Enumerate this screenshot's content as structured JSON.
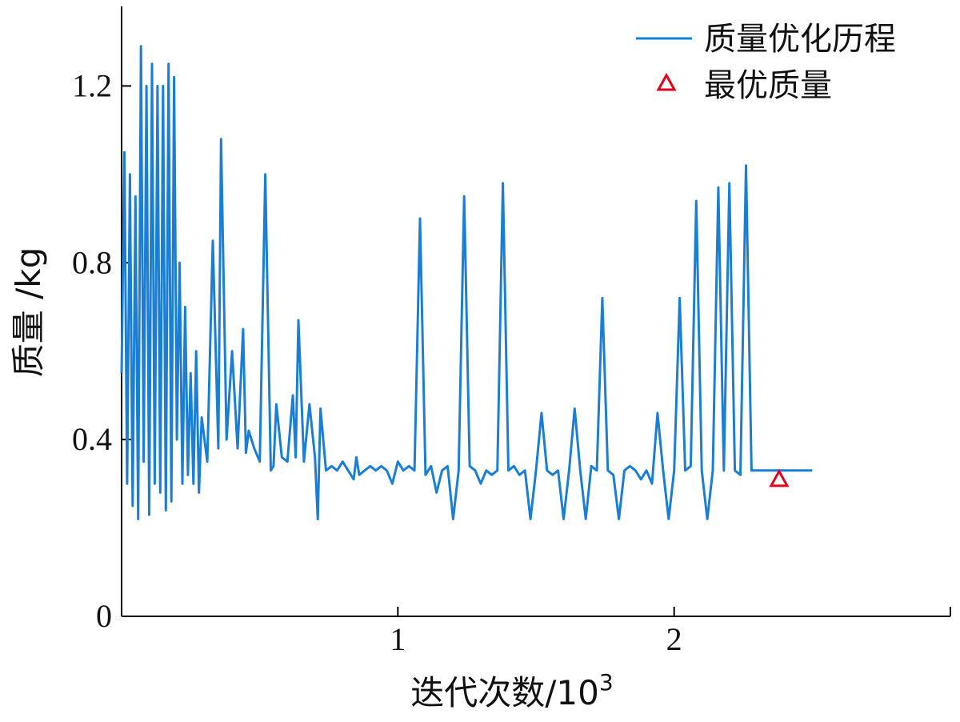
{
  "chart_data": {
    "type": "line",
    "xlabel": "迭代次数/10",
    "xlabel_exponent": "3",
    "ylabel": "质量 /kg",
    "xlim": [
      0,
      3.0
    ],
    "ylim": [
      0,
      1.38
    ],
    "x_ticks": [
      {
        "value": 1,
        "label": "1"
      },
      {
        "value": 2,
        "label": "2"
      }
    ],
    "y_ticks": [
      {
        "value": 0,
        "label": "0"
      },
      {
        "value": 0.4,
        "label": "0.4"
      },
      {
        "value": 0.8,
        "label": "0.8"
      },
      {
        "value": 1.2,
        "label": "1.2"
      }
    ],
    "grid": false,
    "legend_position": "top-right",
    "colors": {
      "line": "#1a7fd4",
      "marker": "#e3001b"
    },
    "series": [
      {
        "name": "质量优化历程",
        "x": [
          0,
          0.01,
          0.02,
          0.03,
          0.04,
          0.05,
          0.06,
          0.07,
          0.08,
          0.09,
          0.1,
          0.11,
          0.12,
          0.13,
          0.14,
          0.15,
          0.16,
          0.17,
          0.18,
          0.19,
          0.2,
          0.21,
          0.22,
          0.23,
          0.24,
          0.25,
          0.26,
          0.27,
          0.28,
          0.29,
          0.3,
          0.31,
          0.33,
          0.35,
          0.36,
          0.38,
          0.4,
          0.42,
          0.44,
          0.45,
          0.46,
          0.48,
          0.5,
          0.52,
          0.54,
          0.55,
          0.56,
          0.58,
          0.6,
          0.62,
          0.63,
          0.64,
          0.66,
          0.68,
          0.7,
          0.71,
          0.72,
          0.74,
          0.76,
          0.78,
          0.8,
          0.82,
          0.84,
          0.85,
          0.86,
          0.88,
          0.9,
          0.92,
          0.94,
          0.96,
          0.98,
          1.0,
          1.02,
          1.04,
          1.06,
          1.08,
          1.1,
          1.12,
          1.14,
          1.16,
          1.18,
          1.2,
          1.22,
          1.24,
          1.26,
          1.28,
          1.3,
          1.32,
          1.34,
          1.36,
          1.38,
          1.4,
          1.42,
          1.44,
          1.46,
          1.48,
          1.5,
          1.52,
          1.54,
          1.56,
          1.58,
          1.6,
          1.62,
          1.64,
          1.66,
          1.68,
          1.7,
          1.72,
          1.74,
          1.76,
          1.78,
          1.8,
          1.82,
          1.84,
          1.86,
          1.88,
          1.9,
          1.92,
          1.94,
          1.96,
          1.98,
          2.0,
          2.02,
          2.04,
          2.06,
          2.08,
          2.1,
          2.12,
          2.14,
          2.16,
          2.18,
          2.2,
          2.22,
          2.24,
          2.26,
          2.28,
          2.3,
          2.32,
          2.34,
          2.36,
          2.38,
          2.4,
          2.42,
          2.44,
          2.46,
          2.5
        ],
        "values": [
          0.55,
          1.05,
          0.3,
          1.0,
          0.25,
          0.95,
          0.22,
          1.29,
          0.35,
          1.2,
          0.23,
          1.25,
          0.3,
          1.2,
          0.28,
          1.2,
          0.24,
          1.25,
          0.26,
          1.22,
          0.4,
          0.8,
          0.3,
          0.7,
          0.32,
          0.55,
          0.3,
          0.6,
          0.28,
          0.45,
          0.4,
          0.35,
          0.85,
          0.38,
          1.08,
          0.4,
          0.6,
          0.38,
          0.65,
          0.37,
          0.42,
          0.38,
          0.35,
          1.0,
          0.33,
          0.34,
          0.48,
          0.36,
          0.35,
          0.5,
          0.36,
          0.67,
          0.35,
          0.48,
          0.36,
          0.22,
          0.47,
          0.33,
          0.34,
          0.33,
          0.35,
          0.33,
          0.31,
          0.36,
          0.32,
          0.33,
          0.34,
          0.33,
          0.34,
          0.33,
          0.3,
          0.35,
          0.33,
          0.34,
          0.33,
          0.9,
          0.32,
          0.34,
          0.28,
          0.33,
          0.34,
          0.22,
          0.33,
          0.95,
          0.34,
          0.33,
          0.3,
          0.33,
          0.32,
          0.33,
          0.98,
          0.33,
          0.34,
          0.32,
          0.33,
          0.22,
          0.33,
          0.46,
          0.33,
          0.32,
          0.33,
          0.22,
          0.33,
          0.47,
          0.33,
          0.22,
          0.34,
          0.33,
          0.72,
          0.33,
          0.32,
          0.22,
          0.33,
          0.34,
          0.33,
          0.31,
          0.33,
          0.3,
          0.46,
          0.33,
          0.22,
          0.33,
          0.72,
          0.33,
          0.34,
          0.94,
          0.33,
          0.22,
          0.33,
          0.97,
          0.33,
          0.98,
          0.33,
          0.32,
          1.02,
          0.33,
          0.33,
          0.33,
          0.33,
          0.33,
          0.33,
          0.33,
          0.33,
          0.33,
          0.33,
          0.33
        ]
      },
      {
        "name": "最优质量",
        "type": "marker",
        "x": [
          2.38
        ],
        "values": [
          0.31
        ]
      }
    ]
  }
}
